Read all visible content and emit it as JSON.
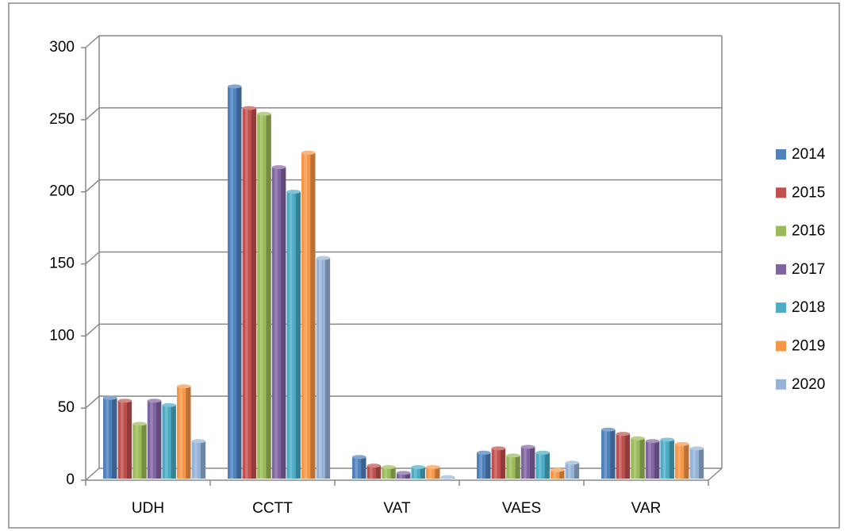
{
  "chart_data": {
    "type": "bar",
    "categories": [
      "UDH",
      "CCTT",
      "VAT",
      "VAES",
      "VAR"
    ],
    "series": [
      {
        "name": "2014",
        "color": "#4f81bd",
        "values": [
          56,
          272,
          15,
          18,
          34
        ]
      },
      {
        "name": "2015",
        "color": "#c0504d",
        "values": [
          54,
          257,
          9,
          21,
          31
        ]
      },
      {
        "name": "2016",
        "color": "#9bbb59",
        "values": [
          38,
          253,
          8,
          16,
          28
        ]
      },
      {
        "name": "2017",
        "color": "#8064a2",
        "values": [
          54,
          216,
          4,
          22,
          26
        ]
      },
      {
        "name": "2018",
        "color": "#4bacc6",
        "values": [
          51,
          199,
          8,
          18,
          27
        ]
      },
      {
        "name": "2019",
        "color": "#f79646",
        "values": [
          64,
          226,
          8,
          6,
          24
        ]
      },
      {
        "name": "2020",
        "color": "#95b3d7",
        "values": [
          26,
          153,
          1,
          11,
          21
        ]
      }
    ],
    "ylim": [
      0,
      300
    ],
    "yticks": [
      0,
      50,
      100,
      150,
      200,
      250,
      300
    ],
    "grid": true,
    "legend": "right"
  }
}
